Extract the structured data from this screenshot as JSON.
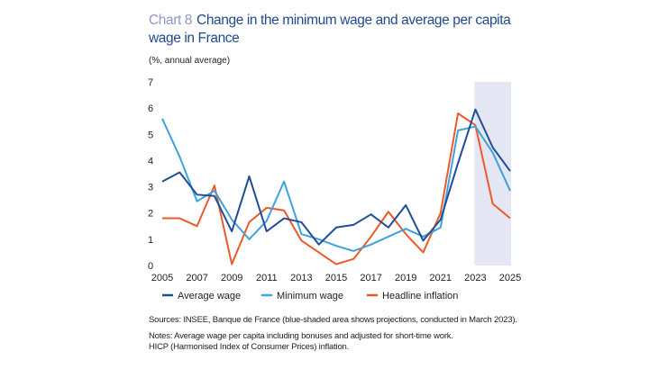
{
  "chart_data": {
    "type": "line",
    "title_number": "Chart 8",
    "title": "Change in the minimum wage and average per capita wage in France",
    "ylabel": "(%, annual average)",
    "x": [
      2005,
      2006,
      2007,
      2008,
      2009,
      2010,
      2011,
      2012,
      2013,
      2014,
      2015,
      2016,
      2017,
      2018,
      2019,
      2020,
      2021,
      2022,
      2023,
      2024,
      2025
    ],
    "xticks": [
      "2005",
      "2007",
      "2009",
      "2011",
      "2013",
      "2015",
      "2017",
      "2019",
      "2021",
      "2023",
      "2025"
    ],
    "yticks": [
      "0",
      "1",
      "2",
      "3",
      "4",
      "5",
      "6",
      "7"
    ],
    "ylim": [
      0,
      7
    ],
    "xlim": [
      2005,
      2025
    ],
    "grid": false,
    "legend": "bottom",
    "shaded_region": {
      "from": 2023,
      "to": 2025,
      "color": "#e4e6f3"
    },
    "series": [
      {
        "name": "Average wage",
        "color": "#1f4e96",
        "values": [
          3.2,
          3.55,
          2.7,
          2.65,
          1.3,
          3.4,
          1.3,
          1.8,
          1.65,
          0.8,
          1.45,
          1.55,
          1.95,
          1.45,
          2.3,
          0.95,
          1.75,
          3.9,
          5.95,
          4.5,
          3.6
        ]
      },
      {
        "name": "Minimum wage",
        "color": "#3ea2dc",
        "values": [
          5.6,
          4.15,
          2.45,
          2.85,
          1.75,
          1.0,
          1.7,
          3.2,
          1.2,
          1.0,
          0.75,
          0.55,
          0.8,
          1.1,
          1.4,
          1.1,
          1.45,
          5.15,
          5.3,
          4.3,
          2.85
        ]
      },
      {
        "name": "Headline inflation",
        "color": "#eb5a2a",
        "values": [
          1.8,
          1.8,
          1.5,
          3.05,
          0.05,
          1.65,
          2.2,
          2.1,
          0.95,
          0.5,
          0.05,
          0.25,
          1.1,
          2.05,
          1.2,
          0.5,
          2.0,
          5.8,
          5.35,
          2.35,
          1.8
        ]
      }
    ]
  },
  "notes": {
    "sources": "Sources: INSEE, Banque de France (blue-shaded area shows projections, conducted in March 2023).",
    "line1": "Notes: Average wage per capita including bonuses and adjusted for short-time work.",
    "line2": "HICP (Harmonised Index of Consumer Prices) inflation."
  }
}
